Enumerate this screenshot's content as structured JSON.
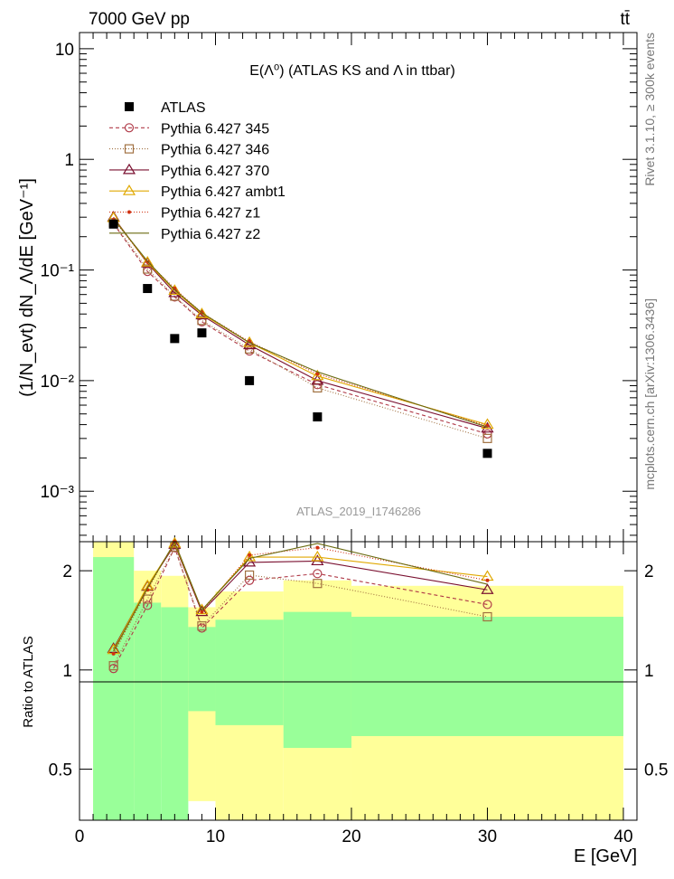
{
  "header": {
    "left": "7000 GeV pp",
    "right": "tt̄"
  },
  "side_labels": {
    "rivet": "Rivet 3.1.10, ≥ 300k events",
    "mcplots": "mcplots.cern.ch [arXiv:1306.3436]"
  },
  "chart_data": [
    {
      "type": "line",
      "title": "E(Λ⁰) (ATLAS KS and Λ in ttbar)",
      "watermark": "ATLAS_2019_I1746286",
      "ylabel": "(1/N_evt) dN_Λ/dE [GeV⁻¹]",
      "yscale": "log",
      "xlim": [
        0,
        41
      ],
      "ylim": [
        0.00035,
        14
      ],
      "y_ticks": [
        {
          "v": 10,
          "label": "10"
        },
        {
          "v": 1,
          "label": "1"
        },
        {
          "v": 0.1,
          "label": "10⁻¹"
        },
        {
          "v": 0.01,
          "label": "10⁻²"
        },
        {
          "v": 0.001,
          "label": "10⁻³"
        }
      ],
      "legend_position": "top-left",
      "data": {
        "name": "ATLAS",
        "x": [
          2.5,
          5,
          7,
          9,
          12.5,
          17.5,
          30
        ],
        "y": [
          0.26,
          0.068,
          0.024,
          0.027,
          0.01,
          0.0047,
          0.0022
        ]
      },
      "series": [
        {
          "name": "Pythia 6.427 345",
          "marker": "circle",
          "dash": "4,3",
          "x": [
            2.5,
            5,
            7,
            9,
            12.5,
            17.5,
            30
          ],
          "y": [
            0.262,
            0.097,
            0.057,
            0.034,
            0.0185,
            0.0092,
            0.0033
          ]
        },
        {
          "name": "Pythia 6.427 346",
          "marker": "square",
          "dash": "1,2",
          "x": [
            2.5,
            5,
            7,
            9,
            12.5,
            17.5,
            30
          ],
          "y": [
            0.267,
            0.102,
            0.058,
            0.035,
            0.0193,
            0.0086,
            0.003
          ]
        },
        {
          "name": "Pythia 6.427 370",
          "marker": "triangle",
          "dash": "",
          "x": [
            2.5,
            5,
            7,
            9,
            12.5,
            17.5,
            30
          ],
          "y": [
            0.3,
            0.115,
            0.062,
            0.039,
            0.021,
            0.01,
            0.0037
          ]
        },
        {
          "name": "Pythia 6.427 ambt1",
          "marker": "triangle",
          "dash": "",
          "x": [
            2.5,
            5,
            7,
            9,
            12.5,
            17.5,
            30
          ],
          "y": [
            0.295,
            0.117,
            0.065,
            0.04,
            0.022,
            0.011,
            0.004
          ]
        },
        {
          "name": "Pythia 6.427 z1",
          "marker": "dot",
          "dash": "1,2",
          "x": [
            2.5,
            5,
            7,
            9,
            12.5,
            17.5,
            30
          ],
          "y": [
            0.285,
            0.118,
            0.068,
            0.041,
            0.0225,
            0.0115,
            0.0039
          ]
        },
        {
          "name": "Pythia 6.427 z2",
          "marker": "none",
          "dash": "",
          "x": [
            2.5,
            5,
            7,
            9,
            12.5,
            17.5,
            30
          ],
          "y": [
            0.29,
            0.12,
            0.066,
            0.041,
            0.022,
            0.012,
            0.0038
          ]
        }
      ]
    },
    {
      "type": "line",
      "ylabel": "Ratio to ATLAS",
      "xlabel": "E [GeV]",
      "yscale": "log",
      "xlim": [
        0,
        41
      ],
      "ylim": [
        0.35,
        2.45
      ],
      "x_ticks": [
        0,
        10,
        20,
        30,
        40
      ],
      "y_ticks": [
        {
          "v": 2,
          "label": "2"
        },
        {
          "v": 1,
          "label": "1"
        },
        {
          "v": 0.5,
          "label": "0.5"
        }
      ],
      "bands": [
        {
          "x0": 1,
          "x1": 4,
          "y_lo": 0.35,
          "y_hi": 2.45,
          "g_lo": 0.35,
          "g_hi": 2.2
        },
        {
          "x0": 4,
          "x1": 6,
          "y_lo": 0.47,
          "y_hi": 2.0,
          "g_lo": 0.35,
          "g_hi": 1.6
        },
        {
          "x0": 6,
          "x1": 8,
          "y_lo": 0.54,
          "y_hi": 1.93,
          "g_lo": 0.35,
          "g_hi": 1.55
        },
        {
          "x0": 8,
          "x1": 10,
          "y_lo": 0.4,
          "y_hi": 1.55,
          "g_lo": 0.75,
          "g_hi": 1.35
        },
        {
          "x0": 10,
          "x1": 15,
          "y_lo": 0.35,
          "y_hi": 1.73,
          "g_lo": 0.68,
          "g_hi": 1.42
        },
        {
          "x0": 15,
          "x1": 20,
          "y_lo": 0.35,
          "y_hi": 1.87,
          "g_lo": 0.58,
          "g_hi": 1.5
        },
        {
          "x0": 20,
          "x1": 40,
          "y_lo": 0.35,
          "y_hi": 1.8,
          "g_lo": 0.63,
          "g_hi": 1.45
        }
      ],
      "series": [
        {
          "name": "Pythia 6.427 345",
          "x": [
            2.5,
            5,
            7,
            9,
            12.5,
            17.5,
            30
          ],
          "y": [
            1.01,
            1.57,
            2.35,
            1.34,
            1.87,
            1.96,
            1.58
          ]
        },
        {
          "name": "Pythia 6.427 346",
          "x": [
            2.5,
            5,
            7,
            9,
            12.5,
            17.5,
            30
          ],
          "y": [
            1.03,
            1.64,
            2.36,
            1.36,
            1.94,
            1.83,
            1.45
          ]
        },
        {
          "name": "Pythia 6.427 370",
          "x": [
            2.5,
            5,
            7,
            9,
            12.5,
            17.5,
            30
          ],
          "y": [
            1.16,
            1.79,
            2.4,
            1.5,
            2.12,
            2.14,
            1.75
          ]
        },
        {
          "name": "Pythia 6.427 ambt1",
          "x": [
            2.5,
            5,
            7,
            9,
            12.5,
            17.5,
            30
          ],
          "y": [
            1.15,
            1.8,
            2.42,
            1.52,
            2.2,
            2.2,
            1.92
          ]
        },
        {
          "name": "Pythia 6.427 z1",
          "x": [
            2.5,
            5,
            7,
            9,
            12.5,
            17.5,
            30
          ],
          "y": [
            1.12,
            1.75,
            2.45,
            1.5,
            2.23,
            2.35,
            1.87
          ]
        },
        {
          "name": "Pythia 6.427 z2",
          "x": [
            2.5,
            5,
            7,
            9,
            12.5,
            17.5,
            30
          ],
          "y": [
            1.14,
            1.77,
            2.44,
            1.52,
            2.18,
            2.42,
            1.82
          ]
        }
      ]
    }
  ],
  "colors": {
    "Pythia 6.427 345": "#b03a48",
    "Pythia 6.427 346": "#a07040",
    "Pythia 6.427 370": "#7a1030",
    "Pythia 6.427 ambt1": "#e0a800",
    "Pythia 6.427 z1": "#d03010",
    "Pythia 6.427 z2": "#6b6b10",
    "data": "#000000",
    "band_yellow": "#ffff99",
    "band_green": "#99ff99"
  }
}
